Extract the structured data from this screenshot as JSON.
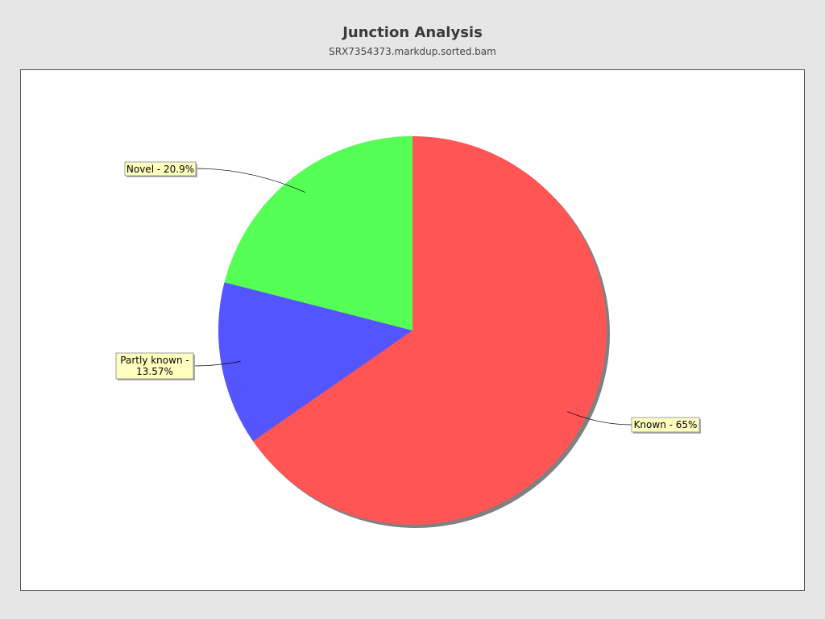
{
  "chart_data": {
    "type": "pie",
    "title": "Junction Analysis",
    "subtitle": "SRX7354373.markdup.sorted.bam",
    "slices": [
      {
        "label": "Known - 65%",
        "value": 65,
        "color": "#ff5555"
      },
      {
        "label": "Partly known - 13.57%",
        "value": 13.57,
        "color": "#5555ff"
      },
      {
        "label": "Novel - 20.9%",
        "value": 20.9,
        "color": "#55ff55"
      }
    ],
    "start_angle": "12 o'clock",
    "direction": "clockwise",
    "label_box_color": "#ffffc0"
  }
}
